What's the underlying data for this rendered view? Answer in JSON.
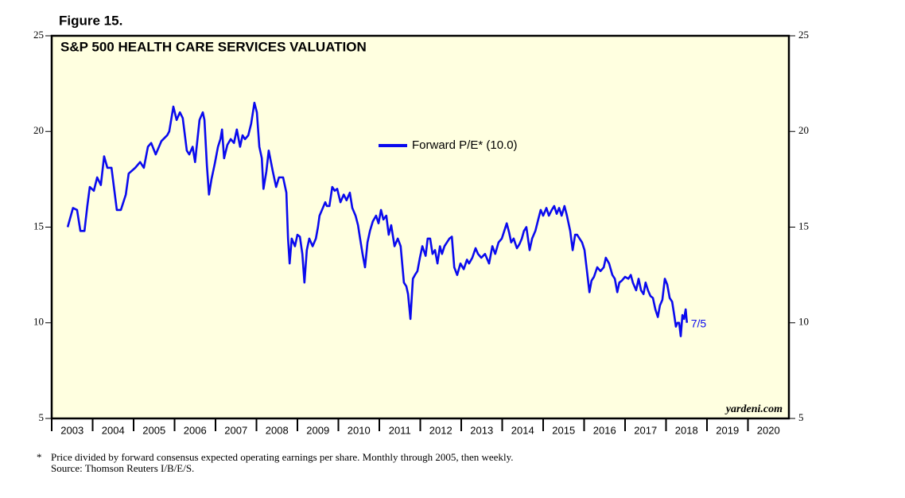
{
  "chart_data": {
    "type": "line",
    "figure_label": "Figure 15.",
    "title": "S&P 500 HEALTH CARE SERVICES VALUATION",
    "annotation": "7/5",
    "source_mark": "yardeni.com",
    "footnote_marker": "*",
    "footnote": "Price divided by forward consensus expected operating earnings per share. Monthly through 2005, then weekly.",
    "source": "Source: Thomson Reuters I/B/E/S.",
    "xlim": [
      2003,
      2021
    ],
    "ylim": [
      5,
      25
    ],
    "yticks": [
      5,
      10,
      15,
      20,
      25
    ],
    "xticks": [
      {
        "value": 2003.5,
        "label": "2003"
      },
      {
        "value": 2004.5,
        "label": "2004"
      },
      {
        "value": 2005.5,
        "label": "2005"
      },
      {
        "value": 2006.5,
        "label": "2006"
      },
      {
        "value": 2007.5,
        "label": "2007"
      },
      {
        "value": 2008.5,
        "label": "2008"
      },
      {
        "value": 2009.5,
        "label": "2009"
      },
      {
        "value": 2010.5,
        "label": "2010"
      },
      {
        "value": 2011.5,
        "label": "2011"
      },
      {
        "value": 2012.5,
        "label": "2012"
      },
      {
        "value": 2013.5,
        "label": "2013"
      },
      {
        "value": 2014.5,
        "label": "2014"
      },
      {
        "value": 2015.5,
        "label": "2015"
      },
      {
        "value": 2016.5,
        "label": "2016"
      },
      {
        "value": 2017.5,
        "label": "2017"
      },
      {
        "value": 2018.5,
        "label": "2018"
      },
      {
        "value": 2019.5,
        "label": "2019"
      },
      {
        "value": 2020.5,
        "label": "2020"
      }
    ],
    "x": [
      2003.39,
      2003.52,
      2003.62,
      2003.7,
      2003.8,
      2003.87,
      2003.93,
      2004.03,
      2004.11,
      2004.2,
      2004.28,
      2004.36,
      2004.46,
      2004.59,
      2004.69,
      2004.81,
      2004.88,
      2005.04,
      2005.16,
      2005.25,
      2005.35,
      2005.43,
      2005.54,
      2005.68,
      2005.82,
      2005.87,
      2005.97,
      2006.05,
      2006.13,
      2006.2,
      2006.3,
      2006.36,
      2006.44,
      2006.5,
      2006.53,
      2006.61,
      2006.69,
      2006.73,
      2006.79,
      2006.84,
      2006.9,
      2006.98,
      2007.06,
      2007.12,
      2007.16,
      2007.21,
      2007.29,
      2007.37,
      2007.45,
      2007.52,
      2007.6,
      2007.66,
      2007.72,
      2007.8,
      2007.87,
      2007.95,
      2008.01,
      2008.07,
      2008.13,
      2008.17,
      2008.24,
      2008.3,
      2008.4,
      2008.48,
      2008.55,
      2008.65,
      2008.73,
      2008.77,
      2008.81,
      2008.86,
      2008.94,
      2009.0,
      2009.06,
      2009.12,
      2009.17,
      2009.23,
      2009.29,
      2009.37,
      2009.45,
      2009.5,
      2009.54,
      2009.6,
      2009.68,
      2009.72,
      2009.78,
      2009.85,
      2009.91,
      2009.97,
      2010.05,
      2010.13,
      2010.2,
      2010.28,
      2010.34,
      2010.42,
      2010.48,
      2010.53,
      2010.59,
      2010.65,
      2010.71,
      2010.77,
      2010.84,
      2010.92,
      2010.98,
      2011.04,
      2011.1,
      2011.17,
      2011.23,
      2011.29,
      2011.37,
      2011.45,
      2011.52,
      2011.6,
      2011.66,
      2011.7,
      2011.76,
      2011.82,
      2011.87,
      2011.93,
      2011.99,
      2012.05,
      2012.13,
      2012.18,
      2012.24,
      2012.3,
      2012.36,
      2012.42,
      2012.48,
      2012.53,
      2012.59,
      2012.65,
      2012.71,
      2012.77,
      2012.83,
      2012.9,
      2012.98,
      2013.06,
      2013.14,
      2013.19,
      2013.27,
      2013.35,
      2013.41,
      2013.49,
      2013.58,
      2013.68,
      2013.76,
      2013.83,
      2013.91,
      2013.99,
      2014.05,
      2014.11,
      2014.17,
      2014.22,
      2014.28,
      2014.36,
      2014.42,
      2014.48,
      2014.53,
      2014.59,
      2014.67,
      2014.73,
      2014.81,
      2014.88,
      2014.94,
      2015.0,
      2015.08,
      2015.14,
      2015.21,
      2015.27,
      2015.33,
      2015.39,
      2015.45,
      2015.52,
      2015.58,
      2015.66,
      2015.72,
      2015.78,
      2015.83,
      2015.89,
      2015.95,
      2016.01,
      2016.07,
      2016.13,
      2016.18,
      2016.24,
      2016.32,
      2016.4,
      2016.48,
      2016.53,
      2016.61,
      2016.69,
      2016.75,
      2016.81,
      2016.86,
      2016.92,
      2017.0,
      2017.08,
      2017.14,
      2017.19,
      2017.27,
      2017.33,
      2017.39,
      2017.45,
      2017.5,
      2017.56,
      2017.62,
      2017.68,
      2017.74,
      2017.8,
      2017.85,
      2017.91,
      2017.97,
      2018.03,
      2018.09,
      2018.15,
      2018.2,
      2018.24,
      2018.28,
      2018.32,
      2018.36,
      2018.4,
      2018.44,
      2018.48,
      2018.51
    ],
    "series": [
      {
        "name": "Forward P/E* (10.0)",
        "color": "#0a0aee",
        "values": [
          15.0,
          16.0,
          15.9,
          14.8,
          14.8,
          16.1,
          17.1,
          16.9,
          17.6,
          17.2,
          18.7,
          18.1,
          18.1,
          15.9,
          15.9,
          16.7,
          17.8,
          18.1,
          18.4,
          18.1,
          19.2,
          19.4,
          18.8,
          19.5,
          19.8,
          20.0,
          21.3,
          20.6,
          21.0,
          20.7,
          19.0,
          18.8,
          19.2,
          18.4,
          19.0,
          20.6,
          21.0,
          20.6,
          18.2,
          16.7,
          17.5,
          18.3,
          19.2,
          19.6,
          20.1,
          18.6,
          19.3,
          19.6,
          19.4,
          20.1,
          19.2,
          19.8,
          19.6,
          19.8,
          20.4,
          21.5,
          21.0,
          19.2,
          18.6,
          17.0,
          17.9,
          19.0,
          17.9,
          17.1,
          17.6,
          17.6,
          16.8,
          14.4,
          13.1,
          14.4,
          14.0,
          14.6,
          14.5,
          13.6,
          12.1,
          13.8,
          14.4,
          14.0,
          14.4,
          15.0,
          15.6,
          15.9,
          16.3,
          16.1,
          16.1,
          17.1,
          16.9,
          17.0,
          16.3,
          16.7,
          16.4,
          16.8,
          16.0,
          15.6,
          15.1,
          14.4,
          13.6,
          12.9,
          14.2,
          14.8,
          15.3,
          15.6,
          15.2,
          15.9,
          15.4,
          15.6,
          14.6,
          15.1,
          14.0,
          14.4,
          14.0,
          12.1,
          11.9,
          11.5,
          10.2,
          12.3,
          12.5,
          12.7,
          13.4,
          14.0,
          13.5,
          14.4,
          14.4,
          13.6,
          13.8,
          13.1,
          14.0,
          13.6,
          14.0,
          14.2,
          14.4,
          14.5,
          12.9,
          12.5,
          13.1,
          12.8,
          13.3,
          13.1,
          13.4,
          13.9,
          13.6,
          13.4,
          13.6,
          13.1,
          14.0,
          13.6,
          14.2,
          14.4,
          14.8,
          15.2,
          14.7,
          14.2,
          14.4,
          13.9,
          14.1,
          14.4,
          14.8,
          15.0,
          13.8,
          14.4,
          14.8,
          15.4,
          15.9,
          15.6,
          16.0,
          15.6,
          15.9,
          16.1,
          15.7,
          16.0,
          15.6,
          16.1,
          15.6,
          14.8,
          13.8,
          14.6,
          14.6,
          14.4,
          14.2,
          13.8,
          12.7,
          11.6,
          12.2,
          12.4,
          12.9,
          12.7,
          12.9,
          13.4,
          13.1,
          12.5,
          12.3,
          11.6,
          12.1,
          12.2,
          12.4,
          12.3,
          12.5,
          12.1,
          11.7,
          12.3,
          11.7,
          11.5,
          12.1,
          11.7,
          11.4,
          11.3,
          10.7,
          10.3,
          10.9,
          11.2,
          12.3,
          12.0,
          11.3,
          11.1,
          10.4,
          9.8,
          10.0,
          10.0,
          9.3,
          10.4,
          10.2,
          10.7,
          10.0
        ]
      }
    ]
  }
}
